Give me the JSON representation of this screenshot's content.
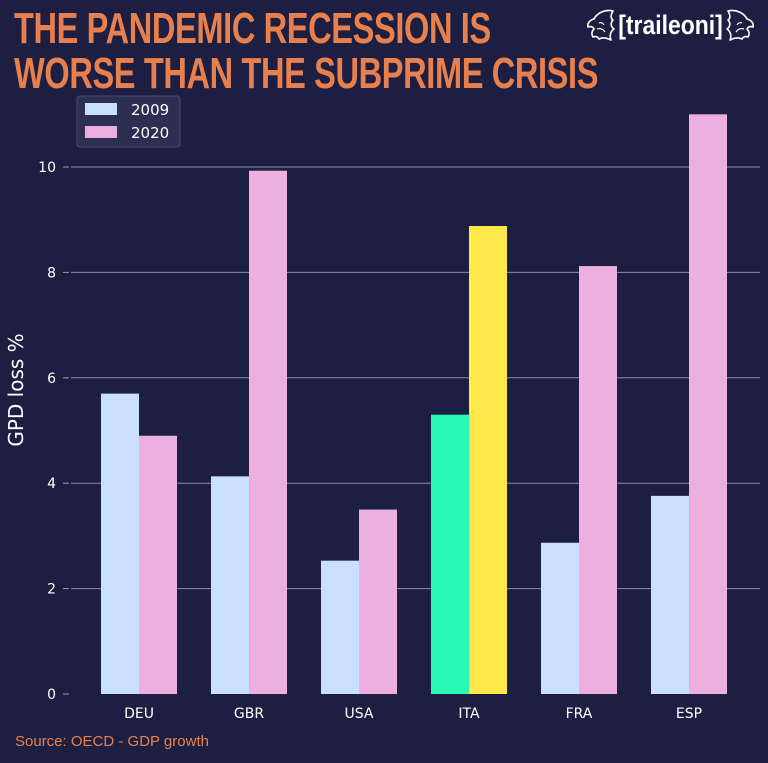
{
  "header": {
    "title_line1": "THE PANDEMIC RECESSION IS",
    "title_line2": "WORSE THAN THE SUBPRIME CRISIS",
    "logo_text": "[traileoni]",
    "logo_icon": "lion-head-icon"
  },
  "footer": {
    "source": "Source: OECD - GDP growth"
  },
  "colors": {
    "background": "#1d1f42",
    "title": "#e8804e",
    "series_2009": "#cadfff",
    "series_2020": "#ecafe0",
    "highlight_2009": "#2af7b3",
    "highlight_2020": "#ffe84a",
    "grid": "#8a8ca8"
  },
  "chart_data": {
    "type": "bar",
    "title": "THE PANDEMIC RECESSION IS WORSE THAN THE SUBPRIME CRISIS",
    "xlabel": "",
    "ylabel": "GPD loss %",
    "categories": [
      "DEU",
      "GBR",
      "USA",
      "ITA",
      "FRA",
      "ESP"
    ],
    "series": [
      {
        "name": "2009",
        "values": [
          5.7,
          4.13,
          2.53,
          5.3,
          2.87,
          3.76
        ]
      },
      {
        "name": "2020",
        "values": [
          4.9,
          9.93,
          3.5,
          8.88,
          8.12,
          11.0
        ]
      }
    ],
    "highlight_category": "ITA",
    "ylim": [
      0,
      11
    ],
    "yticks": [
      0,
      2,
      4,
      6,
      8,
      10
    ],
    "grid": "y",
    "legend_position": "top-left"
  }
}
